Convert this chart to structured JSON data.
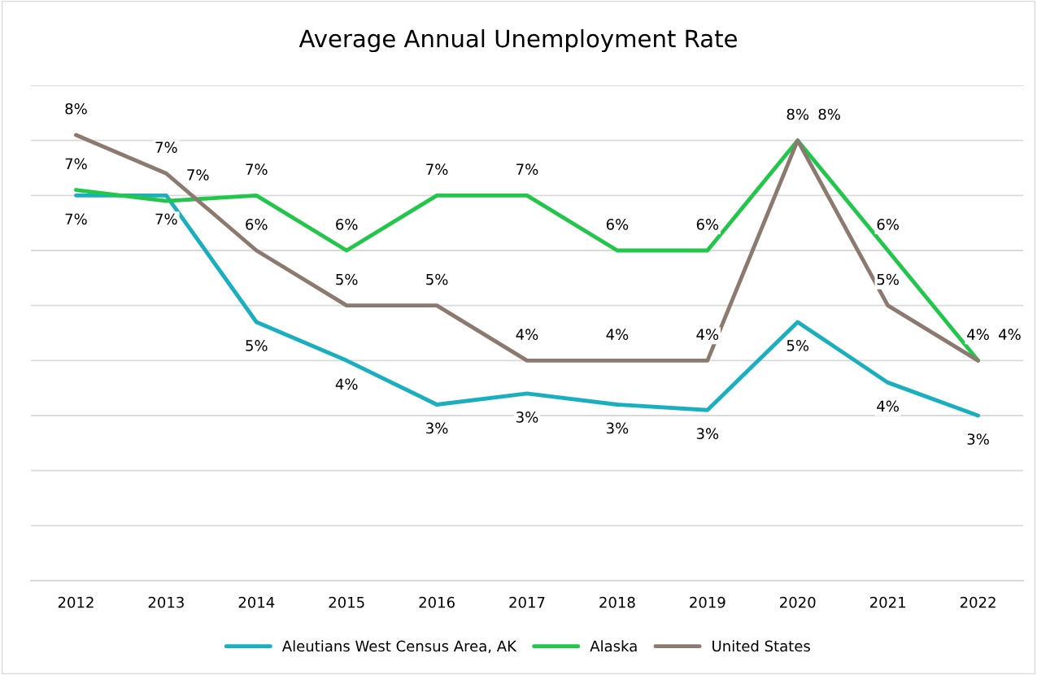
{
  "chart_data": {
    "type": "line",
    "title": "Average Annual Unemployment Rate",
    "categories": [
      "2012",
      "2013",
      "2014",
      "2015",
      "2016",
      "2017",
      "2018",
      "2019",
      "2020",
      "2021",
      "2022"
    ],
    "series": [
      {
        "name": "Aleutians West Census Area, AK",
        "color": "#1aafbf",
        "values": [
          7.0,
          7.0,
          4.7,
          4.0,
          3.2,
          3.4,
          3.2,
          3.1,
          4.7,
          3.6,
          3.0
        ],
        "value_labels": [
          "7%",
          "7%",
          "5%",
          "4%",
          "3%",
          "3%",
          "3%",
          "3%",
          "5%",
          "4%",
          "3%"
        ]
      },
      {
        "name": "Alaska",
        "color": "#21c64a",
        "values": [
          7.1,
          6.9,
          7.0,
          6.0,
          7.0,
          7.0,
          6.0,
          6.0,
          8.0,
          6.0,
          4.0
        ],
        "value_labels": [
          "7%",
          "7%",
          "7%",
          "6%",
          "7%",
          "7%",
          "6%",
          "6%",
          "8%",
          "6%",
          "4%"
        ]
      },
      {
        "name": "United States",
        "color": "#8c7a70",
        "values": [
          8.1,
          7.4,
          6.0,
          5.0,
          5.0,
          4.0,
          4.0,
          4.0,
          8.0,
          5.0,
          4.0
        ],
        "value_labels": [
          "8%",
          "7%",
          "6%",
          "5%",
          "5%",
          "4%",
          "4%",
          "4%",
          "8%",
          "5%",
          "4%"
        ]
      }
    ],
    "ylim": [
      0,
      9
    ],
    "yticks": [
      {
        "value": 0,
        "label": null
      },
      {
        "value": 1,
        "label": null
      },
      {
        "value": 2,
        "label": null
      },
      {
        "value": 3,
        "label": null
      },
      {
        "value": 4,
        "label": null
      },
      {
        "value": 5,
        "label": null
      },
      {
        "value": 6,
        "label": null
      },
      {
        "value": 7,
        "label": null
      },
      {
        "value": 8,
        "label": null
      },
      {
        "value": 9,
        "label": null
      }
    ],
    "grid": "y",
    "legend": "bottom",
    "marker": "none",
    "line_style": "solid"
  }
}
